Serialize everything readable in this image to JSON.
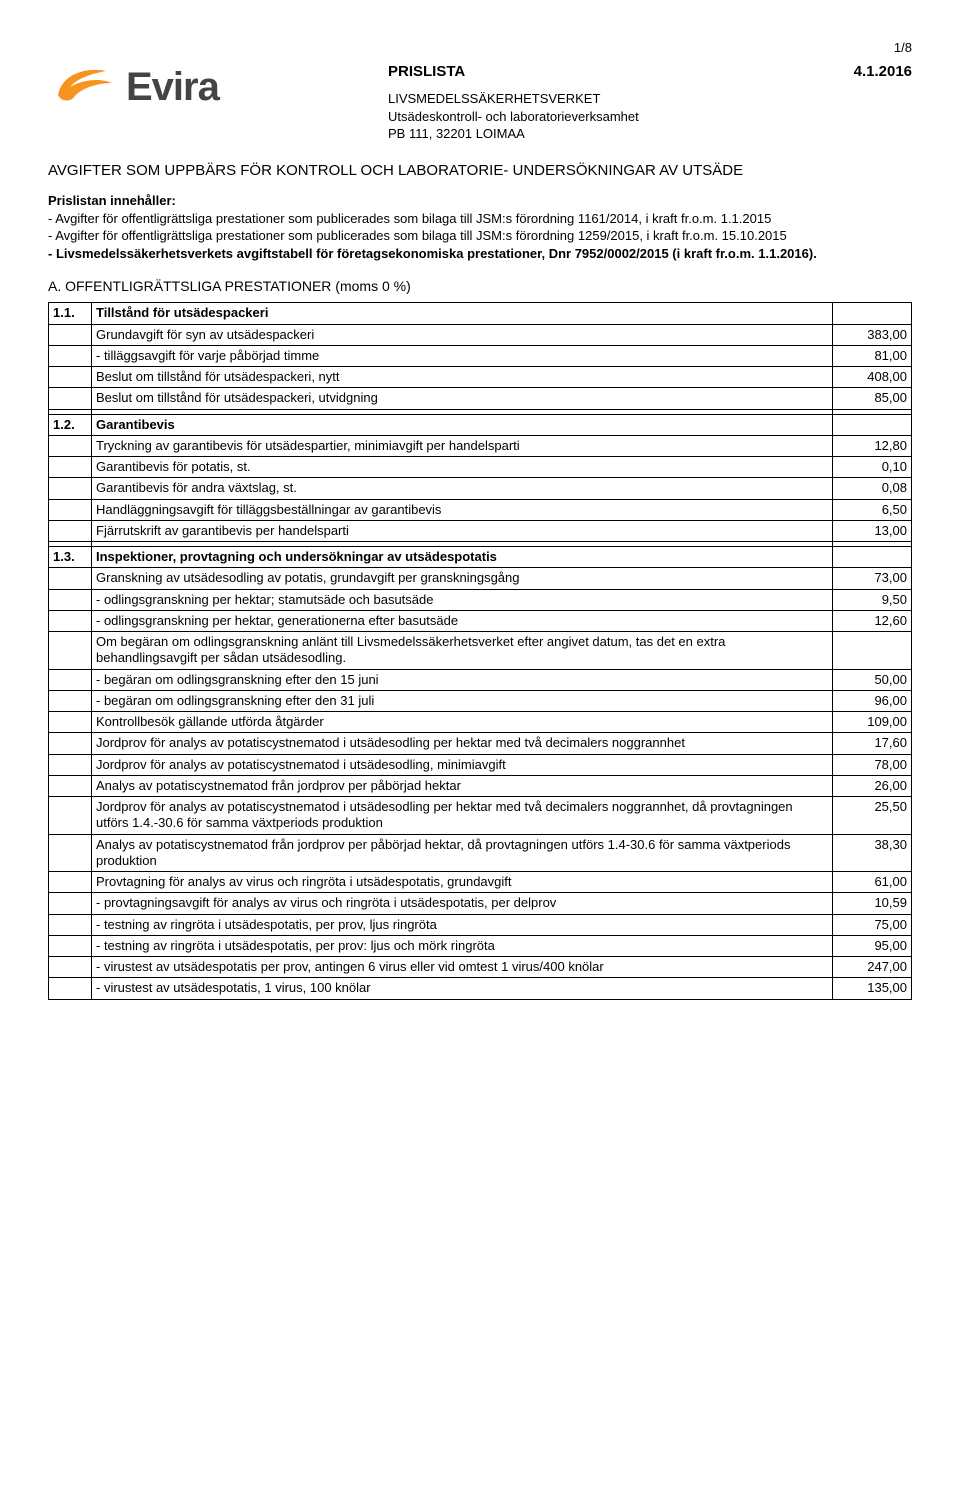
{
  "page_number": "1/8",
  "logo": {
    "text": "Evira",
    "color": "#f7941e"
  },
  "doc_header": {
    "title": "PRISLISTA",
    "date": "4.1.2016",
    "line1": "LIVSMEDELSSÄKERHETSVERKET",
    "line2": "Utsädeskontroll- och laboratorieverksamhet",
    "line3": "PB 111, 32201 LOIMAA"
  },
  "main_heading": "AVGIFTER SOM UPPBÄRS FÖR KONTROLL OCH LABORATORIE- UNDERSÖKNINGAR AV UTSÄDE",
  "intro": {
    "lead": "Prislistan innehåller:",
    "p1": "- Avgifter för offentligrättsliga prestationer som publicerades som bilaga till JSM:s förordning 1161/2014, i kraft fr.o.m. 1.1.2015",
    "p2": "- Avgifter för offentligrättsliga prestationer som publicerades som bilaga till JSM:s förordning 1259/2015, i kraft fr.o.m. 15.10.2015",
    "p3": "-    Livsmedelssäkerhetsverkets avgiftstabell för företagsekonomiska prestationer, Dnr 7952/0002/2015 (i kraft fr.o.m. 1.1.2016)."
  },
  "section_a_heading": "A.    OFFENTLIGRÄTTSLIGA PRESTATIONER (moms 0 %)",
  "groups": [
    {
      "num": "1.1.",
      "title": "Tillstånd för utsädespackeri",
      "rows": [
        {
          "label": "Grundavgift för syn av utsädespackeri",
          "value": "383,00"
        },
        {
          "label": " - tilläggsavgift för varje påbörjad timme",
          "value": "81,00"
        },
        {
          "label": "Beslut om tillstånd för utsädespackeri, nytt",
          "value": "408,00"
        },
        {
          "label": "Beslut om tillstånd för utsädespackeri, utvidgning",
          "value": "85,00"
        }
      ]
    },
    {
      "num": "1.2.",
      "title": "Garantibevis",
      "rows": [
        {
          "label": "Tryckning av garantibevis för utsädespartier, minimiavgift per handelsparti",
          "value": "12,80"
        },
        {
          "label": "Garantibevis för potatis, st.",
          "value": "0,10"
        },
        {
          "label": "Garantibevis för andra växtslag, st.",
          "value": "0,08"
        },
        {
          "label": "Handläggningsavgift för tilläggsbeställningar av garantibevis",
          "value": "6,50"
        },
        {
          "label": "Fjärrutskrift av garantibevis per handelsparti",
          "value": "13,00"
        }
      ]
    },
    {
      "num": "1.3.",
      "title": "Inspektioner, provtagning och undersökningar av utsädespotatis",
      "rows": [
        {
          "label": "Granskning av utsädesodling av potatis, grundavgift per granskningsgång",
          "value": "73,00"
        },
        {
          "label": "- odlingsgranskning per hektar; stamutsäde och basutsäde",
          "value": "9,50"
        },
        {
          "label": "- odlingsgranskning per hektar, generationerna efter basutsäde",
          "value": "12,60"
        },
        {
          "label": "Om begäran om odlingsgranskning anlänt till Livsmedelssäkerhetsverket efter angivet datum, tas det en extra behandlingsavgift per sådan utsädesodling.",
          "value": ""
        },
        {
          "label": "- begäran om odlingsgranskning efter den 15 juni",
          "value": "50,00"
        },
        {
          "label": "- begäran om odlingsgranskning efter den 31 juli",
          "value": "96,00"
        },
        {
          "label": "Kontrollbesök gällande utförda åtgärder",
          "value": "109,00"
        },
        {
          "label": "Jordprov för analys av potatiscystnematod i utsädesodling per hektar med två decimalers noggrannhet",
          "value": "17,60"
        },
        {
          "label": "Jordprov för analys av potatiscystnematod i utsädesodling, minimiavgift",
          "value": "78,00"
        },
        {
          "label": "Analys av potatiscystnematod från jordprov per påbörjad hektar",
          "value": "26,00"
        },
        {
          "label": "Jordprov för analys av potatiscystnematod i utsädesodling per hektar med två decimalers noggrannhet, då provtagningen utförs 1.4.-30.6 för samma växtperiods produktion",
          "value": "25,50"
        },
        {
          "label": "Analys av potatiscystnematod från jordprov per påbörjad hektar, då provtagningen utförs 1.4-30.6 för samma växtperiods produktion",
          "value": "38,30"
        },
        {
          "label": "Provtagning för analys av virus och ringröta i utsädespotatis, grundavgift",
          "value": "61,00"
        },
        {
          "label": "- provtagningsavgift för analys av virus och ringröta i utsädespotatis, per delprov",
          "value": "10,59"
        },
        {
          "label": "- testning av ringröta i utsädespotatis, per prov, ljus ringröta",
          "value": "75,00"
        },
        {
          "label": "- testning av ringröta i utsädespotatis, per prov: ljus och mörk ringröta",
          "value": "95,00"
        },
        {
          "label": "- virustest av utsädespotatis per prov, antingen 6 virus eller vid omtest 1 virus/400 knölar",
          "value": "247,00"
        },
        {
          "label": "- virustest av utsädespotatis, 1 virus, 100 knölar",
          "value": "135,00"
        }
      ]
    }
  ]
}
